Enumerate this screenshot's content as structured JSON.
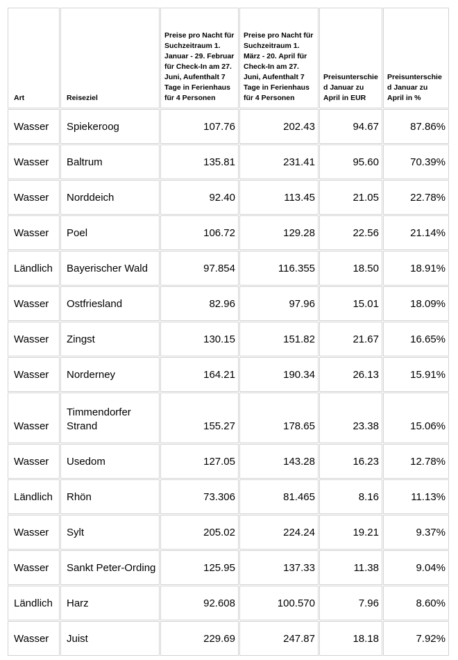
{
  "table": {
    "columns": [
      {
        "key": "art",
        "label": "Art",
        "align": "left"
      },
      {
        "key": "reiseziel",
        "label": "Reiseziel",
        "align": "left"
      },
      {
        "key": "preis_jan",
        "label": "Preise pro Nacht für Suchzeitraum 1. Januar - 29. Februar für Check-In am 27. Juni, Aufenthalt 7 Tage in Ferienhaus für 4 Personen",
        "align": "right"
      },
      {
        "key": "preis_apr",
        "label": "Preise pro Nacht für Suchzeitraum 1. März - 20. April für Check-In am 27. Juni, Aufenthalt 7 Tage in Ferienhaus für 4 Personen",
        "align": "right"
      },
      {
        "key": "diff_eur",
        "label": "Preisunterschied Januar zu April in EUR",
        "align": "right"
      },
      {
        "key": "diff_pct",
        "label": "Preisunterschied Januar zu April in %",
        "align": "right"
      }
    ],
    "rows": [
      [
        "Wasser",
        "Spiekeroog",
        "107.76",
        "202.43",
        "94.67",
        "87.86%"
      ],
      [
        "Wasser",
        "Baltrum",
        "135.81",
        "231.41",
        "95.60",
        "70.39%"
      ],
      [
        "Wasser",
        "Norddeich",
        "92.40",
        "113.45",
        "21.05",
        "22.78%"
      ],
      [
        "Wasser",
        "Poel",
        "106.72",
        "129.28",
        "22.56",
        "21.14%"
      ],
      [
        "Ländlich",
        "Bayerischer Wald",
        "97.854",
        "116.355",
        "18.50",
        "18.91%"
      ],
      [
        "Wasser",
        "Ostfriesland",
        "82.96",
        "97.96",
        "15.01",
        "18.09%"
      ],
      [
        "Wasser",
        "Zingst",
        "130.15",
        "151.82",
        "21.67",
        "16.65%"
      ],
      [
        "Wasser",
        "Norderney",
        "164.21",
        "190.34",
        "26.13",
        "15.91%"
      ],
      [
        "Wasser",
        "Timmendorfer Strand",
        "155.27",
        "178.65",
        "23.38",
        "15.06%"
      ],
      [
        "Wasser",
        "Usedom",
        "127.05",
        "143.28",
        "16.23",
        "12.78%"
      ],
      [
        "Ländlich",
        "Rhön",
        "73.306",
        "81.465",
        "8.16",
        "11.13%"
      ],
      [
        "Wasser",
        "Sylt",
        "205.02",
        "224.24",
        "19.21",
        "9.37%"
      ],
      [
        "Wasser",
        "Sankt Peter-Ording",
        "125.95",
        "137.33",
        "11.38",
        "9.04%"
      ],
      [
        "Ländlich",
        "Harz",
        "92.608",
        "100.570",
        "7.96",
        "8.60%"
      ],
      [
        "Wasser",
        "Juist",
        "229.69",
        "247.87",
        "18.18",
        "7.92%"
      ]
    ],
    "border_color": "#d2d2d2",
    "text_color": "#000000"
  }
}
